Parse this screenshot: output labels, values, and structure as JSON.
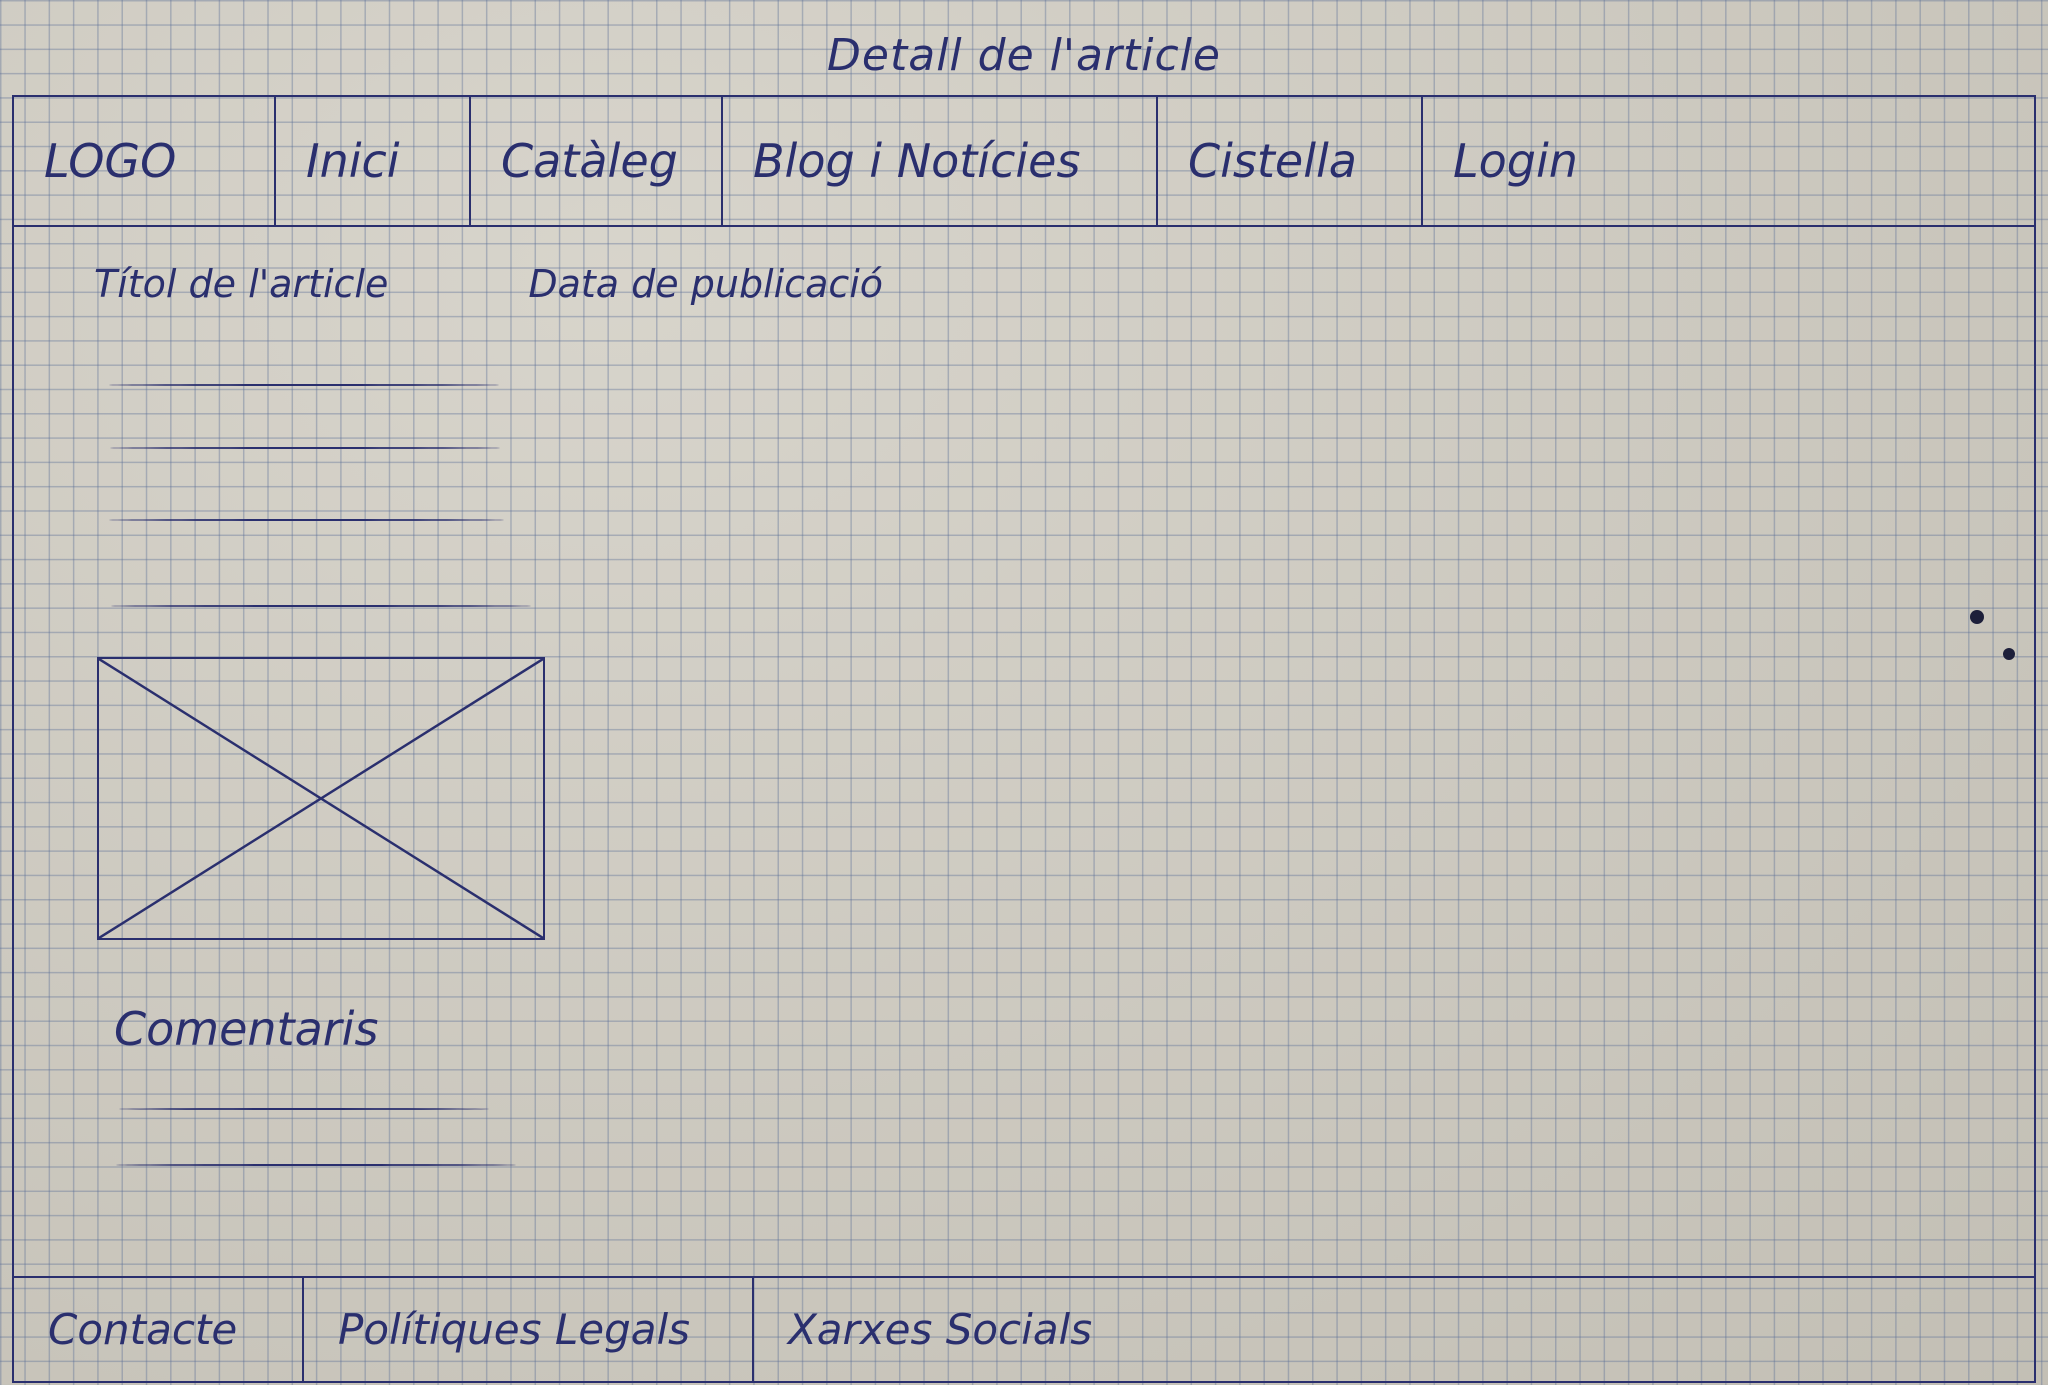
{
  "page_title": "Detall de l'article",
  "header": {
    "logo": "LOGO",
    "nav": [
      {
        "label": "Inici"
      },
      {
        "label": "Catàleg"
      },
      {
        "label": "Blog i Notícies"
      },
      {
        "label": "Cistella"
      },
      {
        "label": "Login"
      }
    ]
  },
  "article": {
    "title": "Títol de l'article",
    "date": "Data de publicació",
    "image_icon": "image-placeholder-icon"
  },
  "comments": {
    "title": "Comentaris"
  },
  "footer": {
    "items": [
      {
        "label": "Contacte"
      },
      {
        "label": "Polítiques Legals"
      },
      {
        "label": "Xarxes Socials"
      }
    ]
  },
  "colors": {
    "ink": "#2a2f6e",
    "paper": "#cfcbc0"
  }
}
